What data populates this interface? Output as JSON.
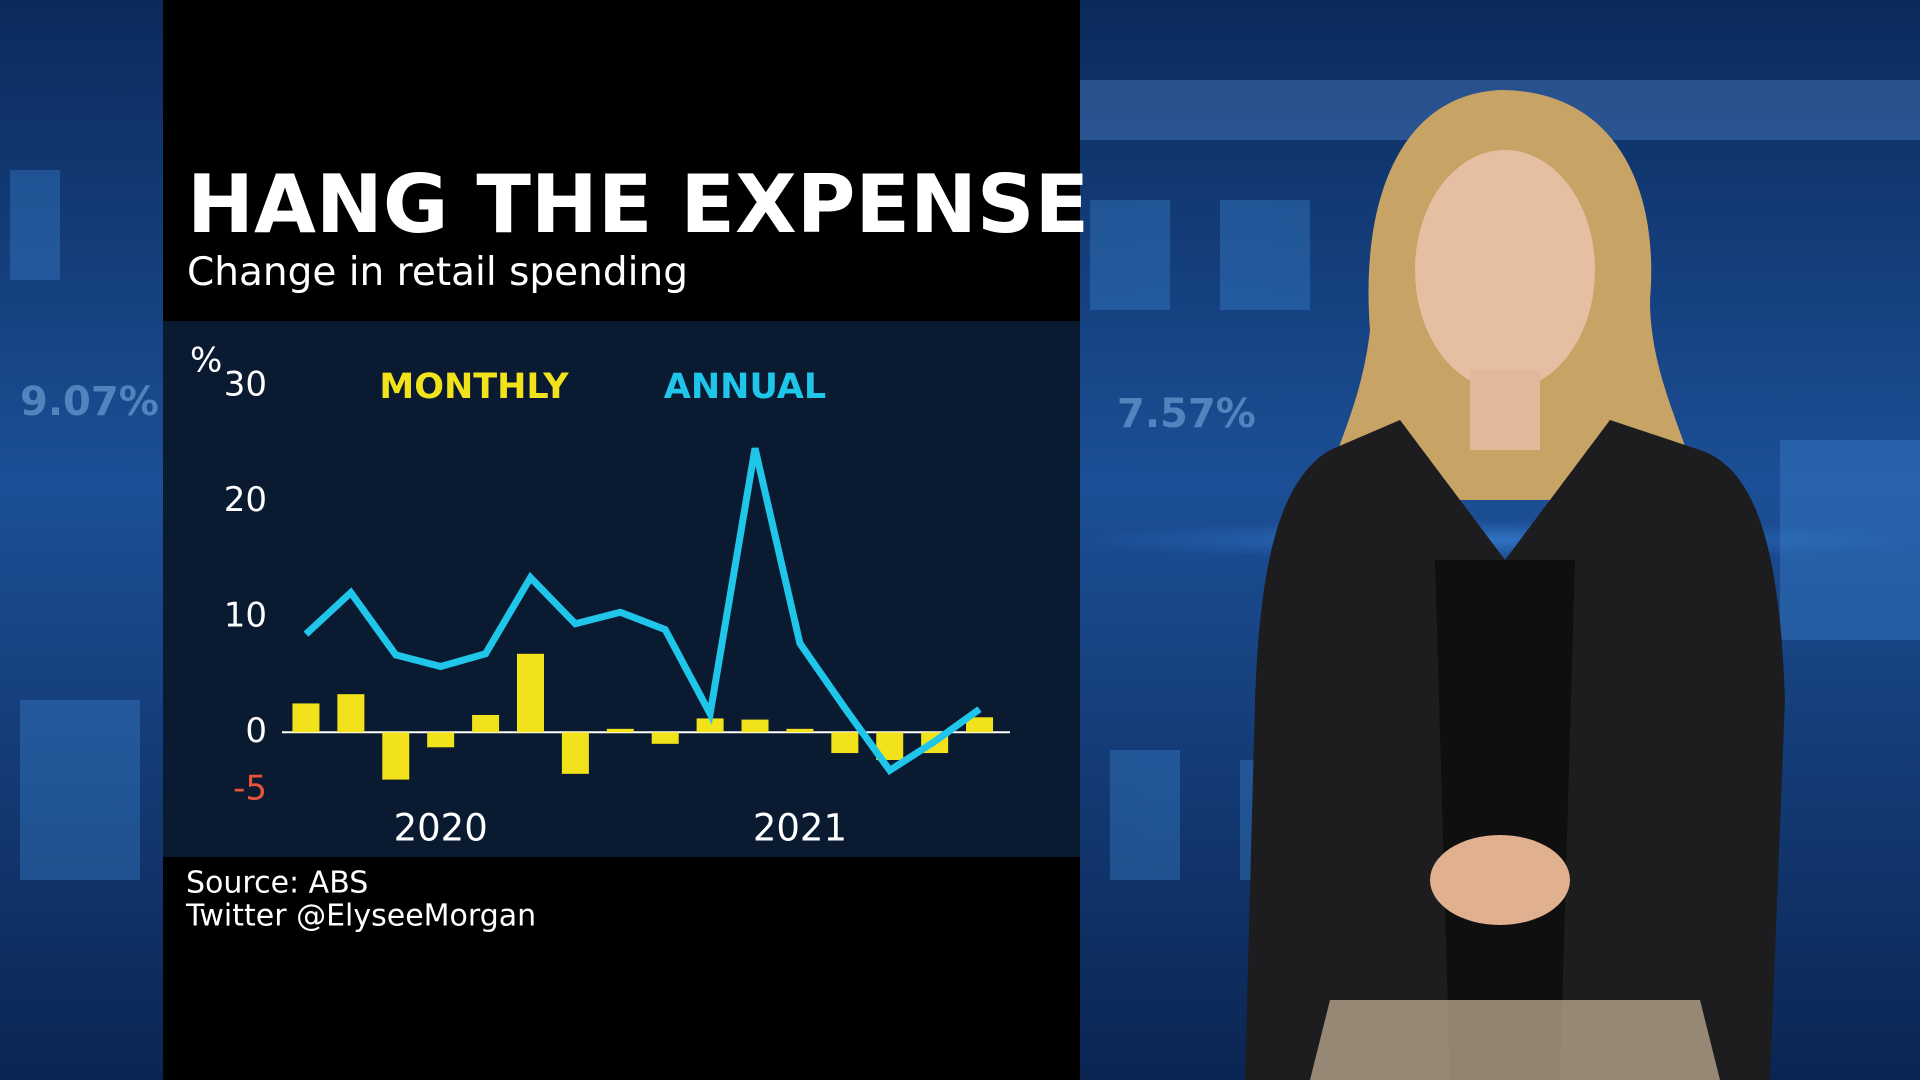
{
  "chart_data": {
    "type": "bar",
    "title": "HANG THE EXPENSE",
    "subtitle": "Change in retail spending",
    "y_unit": "%",
    "categories": [
      null,
      null,
      null,
      "2020",
      null,
      null,
      null,
      null,
      null,
      null,
      null,
      "2021",
      null,
      null,
      null,
      null
    ],
    "series": [
      {
        "name": "MONTHLY",
        "color": "#f2e21b",
        "values": [
          2.5,
          3.3,
          -4.1,
          -1.3,
          1.5,
          6.8,
          -3.6,
          0.3,
          -1.0,
          1.2,
          1.1,
          0.3,
          -1.8,
          -2.4,
          -1.8,
          1.3
        ]
      },
      {
        "name": "ANNUAL",
        "color": "#1fc6ea",
        "type": "line",
        "values": [
          8.5,
          12.1,
          6.7,
          5.7,
          6.8,
          13.4,
          9.4,
          10.4,
          8.9,
          1.6,
          24.6,
          7.7,
          2.1,
          -3.3,
          -0.8,
          2.0
        ]
      }
    ],
    "ylim": [
      -5,
      30
    ],
    "yticks": [
      30,
      20,
      10,
      0,
      -5
    ]
  },
  "source": "Source: ABS",
  "credit": "Twitter @ElyseeMorgan",
  "background": {
    "tickers": [
      "9.07%",
      "7.57%"
    ]
  }
}
